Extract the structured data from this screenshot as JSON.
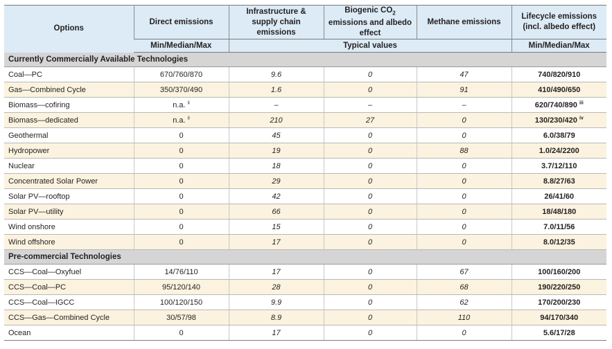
{
  "headers": {
    "options": "Options",
    "direct": "Direct emissions",
    "infrastructure": "Infrastructure & supply chain emissions",
    "biogenic_prefix": "Biogenic CO",
    "biogenic_sub": "2",
    "biogenic_suffix": " emissions and albedo effect",
    "methane": "Methane emissions",
    "lifecycle": "Lifecycle emissions (incl. albedo effect)",
    "direct_unit": "Min/Median/Max",
    "typical": "Typical values",
    "lifecycle_unit": "Min/Median/Max"
  },
  "sections": [
    {
      "title": "Currently Commercially Available Technologies",
      "rows": [
        {
          "option": "Coal—PC",
          "direct": "670/760/870",
          "direct_note": "",
          "infra": "9.6",
          "bio": "0",
          "meth": "47",
          "life": "740/820/910",
          "life_note": ""
        },
        {
          "option": "Gas—Combined Cycle",
          "direct": "350/370/490",
          "direct_note": "",
          "infra": "1.6",
          "bio": "0",
          "meth": "91",
          "life": "410/490/650",
          "life_note": ""
        },
        {
          "option": "Biomass—cofiring",
          "direct": "n.a.",
          "direct_note": "ii",
          "infra": "–",
          "bio": "–",
          "meth": "–",
          "life": "620/740/890",
          "life_note": "iii"
        },
        {
          "option": "Biomass—dedicated",
          "direct": "n.a.",
          "direct_note": "ii",
          "infra": "210",
          "bio": "27",
          "meth": "0",
          "life": "130/230/420",
          "life_note": "iv"
        },
        {
          "option": "Geothermal",
          "direct": "0",
          "direct_note": "",
          "infra": "45",
          "bio": "0",
          "meth": "0",
          "life": "6.0/38/79",
          "life_note": ""
        },
        {
          "option": "Hydropower",
          "direct": "0",
          "direct_note": "",
          "infra": "19",
          "bio": "0",
          "meth": "88",
          "life": "1.0/24/2200",
          "life_note": ""
        },
        {
          "option": "Nuclear",
          "direct": "0",
          "direct_note": "",
          "infra": "18",
          "bio": "0",
          "meth": "0",
          "life": "3.7/12/110",
          "life_note": ""
        },
        {
          "option": "Concentrated Solar Power",
          "direct": "0",
          "direct_note": "",
          "infra": "29",
          "bio": "0",
          "meth": "0",
          "life": "8.8/27/63",
          "life_note": ""
        },
        {
          "option": "Solar PV—rooftop",
          "direct": "0",
          "direct_note": "",
          "infra": "42",
          "bio": "0",
          "meth": "0",
          "life": "26/41/60",
          "life_note": ""
        },
        {
          "option": "Solar PV—utility",
          "direct": "0",
          "direct_note": "",
          "infra": "66",
          "bio": "0",
          "meth": "0",
          "life": "18/48/180",
          "life_note": ""
        },
        {
          "option": "Wind onshore",
          "direct": "0",
          "direct_note": "",
          "infra": "15",
          "bio": "0",
          "meth": "0",
          "life": "7.0/11/56",
          "life_note": ""
        },
        {
          "option": "Wind offshore",
          "direct": "0",
          "direct_note": "",
          "infra": "17",
          "bio": "0",
          "meth": "0",
          "life": "8.0/12/35",
          "life_note": ""
        }
      ]
    },
    {
      "title": "Pre-commercial Technologies",
      "rows": [
        {
          "option": "CCS—Coal—Oxyfuel",
          "direct": "14/76/110",
          "direct_note": "",
          "infra": "17",
          "bio": "0",
          "meth": "67",
          "life": "100/160/200",
          "life_note": ""
        },
        {
          "option": "CCS—Coal—PC",
          "direct": "95/120/140",
          "direct_note": "",
          "infra": "28",
          "bio": "0",
          "meth": "68",
          "life": "190/220/250",
          "life_note": ""
        },
        {
          "option": "CCS—Coal—IGCC",
          "direct": "100/120/150",
          "direct_note": "",
          "infra": "9.9",
          "bio": "0",
          "meth": "62",
          "life": "170/200/230",
          "life_note": ""
        },
        {
          "option": "CCS—Gas—Combined Cycle",
          "direct": "30/57/98",
          "direct_note": "",
          "infra": "8.9",
          "bio": "0",
          "meth": "110",
          "life": "94/170/340",
          "life_note": ""
        },
        {
          "option": "Ocean",
          "direct": "0",
          "direct_note": "",
          "infra": "17",
          "bio": "0",
          "meth": "0",
          "life": "5.6/17/28",
          "life_note": ""
        }
      ]
    }
  ]
}
